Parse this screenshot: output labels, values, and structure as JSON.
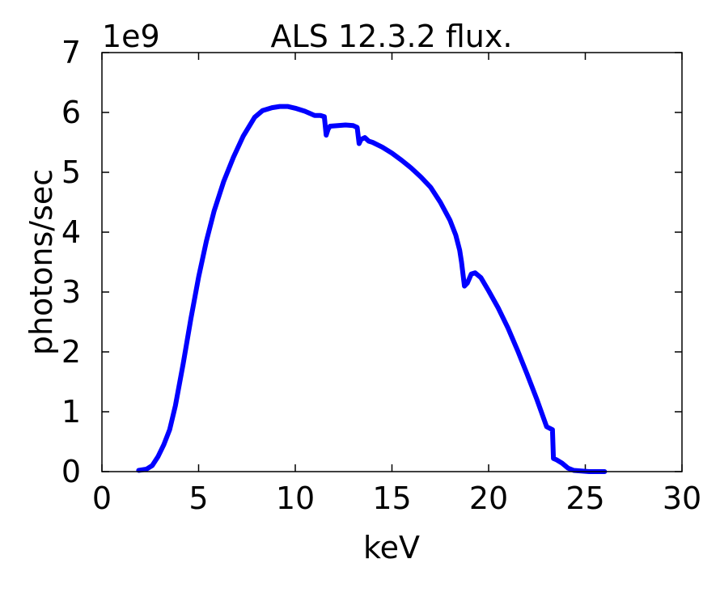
{
  "chart_data": {
    "type": "line",
    "title": "ALS 12.3.2 flux.",
    "xlabel": "keV",
    "ylabel": "photons/sec",
    "scale_label": "1e9",
    "xlim": [
      0,
      30
    ],
    "ylim": [
      0,
      7
    ],
    "xticks": [
      "0",
      "5",
      "10",
      "15",
      "20",
      "25",
      "30"
    ],
    "yticks": [
      "0",
      "1",
      "2",
      "3",
      "4",
      "5",
      "6",
      "7"
    ],
    "grid": false,
    "legend": "none",
    "series": [
      {
        "color": "#0000ff",
        "x": [
          1.9,
          2.3,
          2.6,
          2.9,
          3.2,
          3.5,
          3.8,
          4.2,
          4.6,
          5.0,
          5.4,
          5.8,
          6.3,
          6.8,
          7.3,
          7.9,
          8.3,
          8.8,
          9.2,
          9.6,
          10.0,
          10.5,
          11.0,
          11.3,
          11.5,
          11.6,
          11.7,
          11.8,
          12.2,
          12.6,
          13.0,
          13.2,
          13.3,
          13.4,
          13.6,
          13.8,
          14.0,
          14.5,
          15.0,
          15.5,
          16.0,
          16.5,
          17.0,
          17.5,
          18.0,
          18.3,
          18.5,
          18.6,
          18.75,
          18.9,
          19.1,
          19.3,
          19.6,
          20.0,
          20.5,
          21.0,
          21.5,
          22.0,
          22.5,
          23.0,
          23.3,
          23.35,
          23.5,
          23.8,
          24.1,
          24.4,
          24.8,
          25.2,
          25.6,
          26.0
        ],
        "y": [
          0.02,
          0.04,
          0.1,
          0.25,
          0.45,
          0.7,
          1.1,
          1.8,
          2.55,
          3.25,
          3.85,
          4.35,
          4.85,
          5.25,
          5.6,
          5.92,
          6.03,
          6.08,
          6.1,
          6.1,
          6.07,
          6.02,
          5.95,
          5.95,
          5.93,
          5.62,
          5.72,
          5.77,
          5.78,
          5.79,
          5.78,
          5.75,
          5.48,
          5.55,
          5.58,
          5.52,
          5.5,
          5.42,
          5.32,
          5.2,
          5.07,
          4.92,
          4.75,
          4.5,
          4.2,
          3.95,
          3.7,
          3.5,
          3.1,
          3.15,
          3.3,
          3.32,
          3.24,
          3.02,
          2.73,
          2.4,
          2.02,
          1.62,
          1.2,
          0.75,
          0.7,
          0.22,
          0.2,
          0.14,
          0.06,
          0.02,
          0.01,
          0.0,
          0.0,
          0.0
        ]
      }
    ]
  }
}
